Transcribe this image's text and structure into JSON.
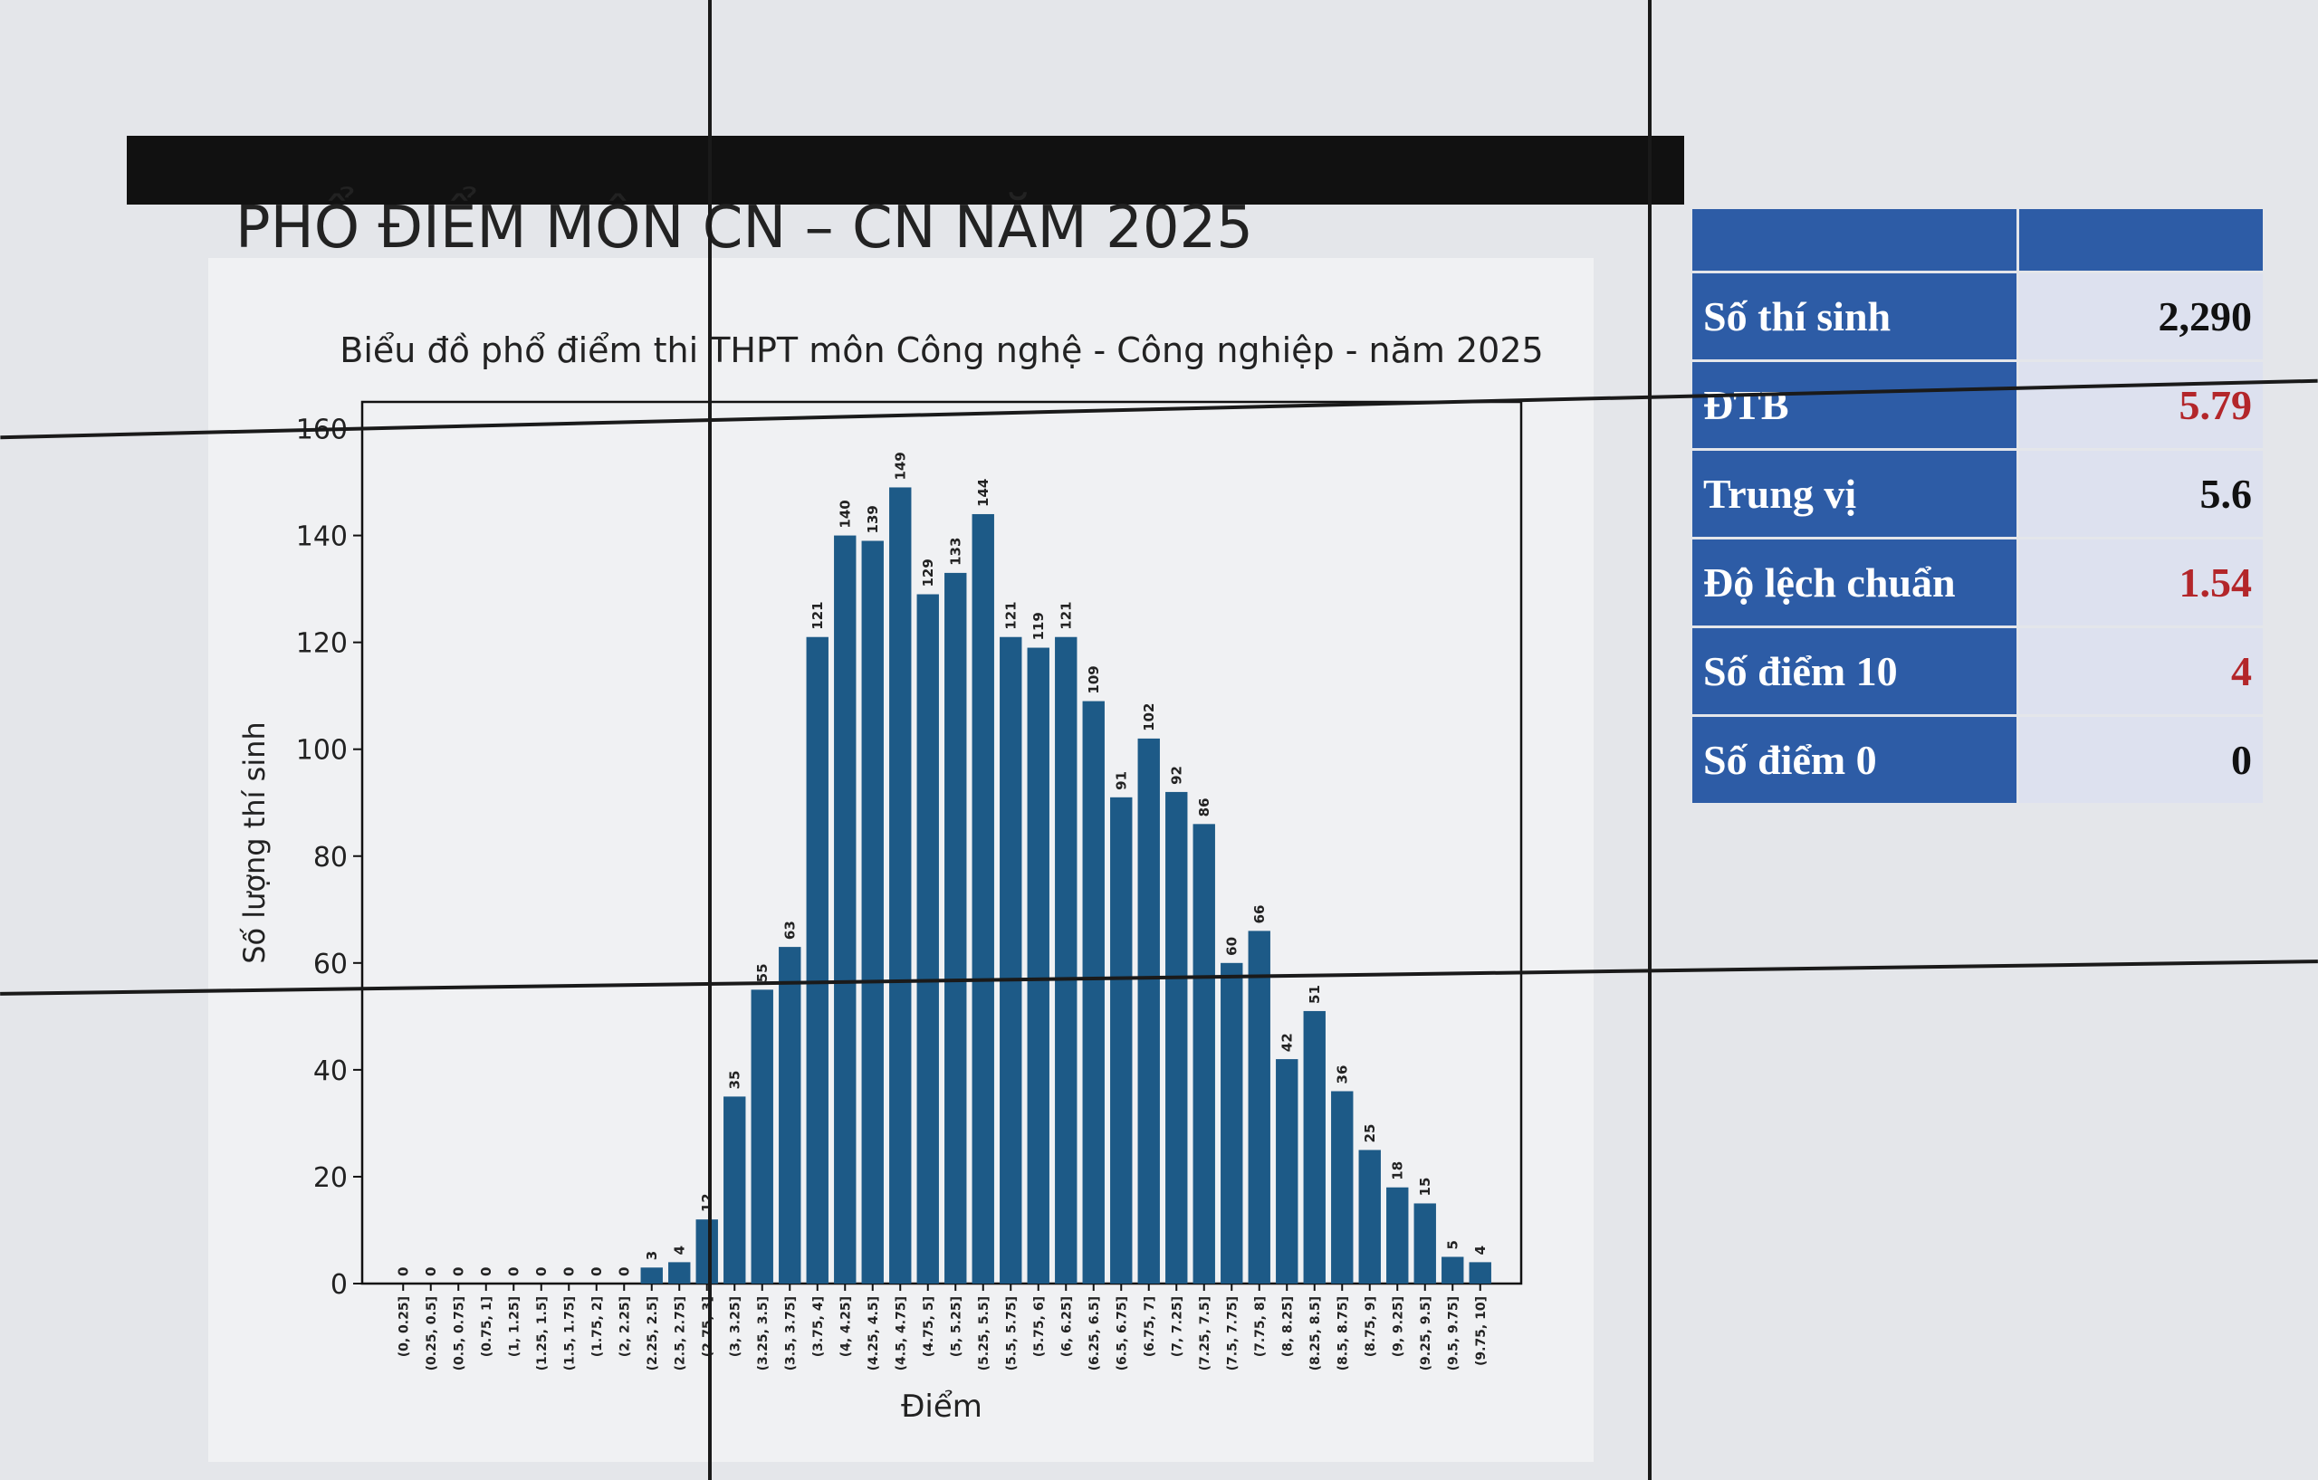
{
  "header": {
    "title": "PHỔ ĐIỂM MÔN CN – CN NĂM 2025"
  },
  "chart_data": {
    "type": "bar",
    "title": "Biểu đồ phổ điểm thi THPT môn Công nghệ - Công nghiệp - năm 2025",
    "x_label": "Điểm",
    "y_label": "Số lượng thí sinh",
    "categories": [
      "(0, 0.25]",
      "(0.25, 0.5]",
      "(0.5, 0.75]",
      "(0.75, 1]",
      "(1, 1.25]",
      "(1.25, 1.5]",
      "(1.5, 1.75]",
      "(1.75, 2]",
      "(2, 2.25]",
      "(2.25, 2.5]",
      "(2.5, 2.75]",
      "(2.75, 3]",
      "(3, 3.25]",
      "(3.25, 3.5]",
      "(3.5, 3.75]",
      "(3.75, 4]",
      "(4, 4.25]",
      "(4.25, 4.5]",
      "(4.5, 4.75]",
      "(4.75, 5]",
      "(5, 5.25]",
      "(5.25, 5.5]",
      "(5.5, 5.75]",
      "(5.75, 6]",
      "(6, 6.25]",
      "(6.25, 6.5]",
      "(6.5, 6.75]",
      "(6.75, 7]",
      "(7, 7.25]",
      "(7.25, 7.5]",
      "(7.5, 7.75]",
      "(7.75, 8]",
      "(8, 8.25]",
      "(8.25, 8.5]",
      "(8.5, 8.75]",
      "(8.75, 9]",
      "(9, 9.25]",
      "(9.25, 9.5]",
      "(9.5, 9.75]",
      "(9.75, 10]"
    ],
    "values": [
      0,
      0,
      0,
      0,
      0,
      0,
      0,
      0,
      0,
      3,
      4,
      12,
      35,
      55,
      63,
      121,
      140,
      139,
      149,
      129,
      133,
      144,
      121,
      119,
      121,
      109,
      91,
      102,
      92,
      86,
      60,
      66,
      42,
      51,
      36,
      25,
      18,
      15,
      5,
      4
    ],
    "color": "#1d5a87",
    "ylim": [
      0,
      165
    ],
    "yticks": [
      0,
      20,
      40,
      60,
      80,
      100,
      120,
      140,
      160
    ]
  },
  "table": {
    "rows": [
      [
        "Số thí sinh",
        "2,290"
      ],
      [
        "ĐTB",
        "5.79"
      ],
      [
        "Trung vị",
        "5.6"
      ],
      [
        "Độ lệch chuẩn",
        "1.54"
      ],
      [
        "Số điểm 10",
        "4"
      ],
      [
        "Số điểm 0",
        "0"
      ]
    ]
  }
}
